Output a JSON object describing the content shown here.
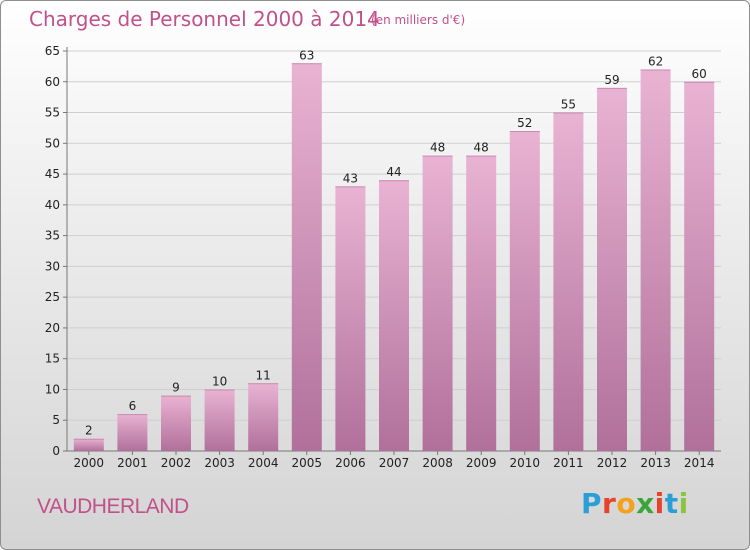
{
  "header": {
    "title": "Charges de Personnel 2000 à 2014",
    "subtitle": "(en milliers d'€)"
  },
  "footer": {
    "commune": "VAUDHERLAND",
    "brand_letters": [
      "P",
      "r",
      "o",
      "x",
      "i",
      "t",
      "i"
    ],
    "brand_colors": [
      "#2a9fd6",
      "#e8412c",
      "#f4a21c",
      "#3aa63a",
      "#e8412c",
      "#2a9fd6",
      "#8bc53f"
    ]
  },
  "colors": {
    "bar_light": "#e9b3d3",
    "bar_dark": "#b0709a",
    "grid": "#cfcfcf",
    "axis": "#777777",
    "title": "#c2508a"
  },
  "chart_data": {
    "type": "bar",
    "title": "Charges de Personnel 2000 à 2014",
    "subtitle": "(en milliers d'€)",
    "xlabel": "",
    "ylabel": "",
    "categories": [
      "2000",
      "2001",
      "2002",
      "2003",
      "2004",
      "2005",
      "2006",
      "2007",
      "2008",
      "2009",
      "2010",
      "2011",
      "2012",
      "2013",
      "2014"
    ],
    "values": [
      2,
      6,
      9,
      10,
      11,
      63,
      43,
      44,
      48,
      48,
      52,
      55,
      59,
      62,
      60
    ],
    "ylim": [
      0,
      65
    ],
    "yticks": [
      0,
      5,
      10,
      15,
      20,
      25,
      30,
      35,
      40,
      45,
      50,
      55,
      60,
      65
    ],
    "grid": true,
    "data_labels": true
  }
}
